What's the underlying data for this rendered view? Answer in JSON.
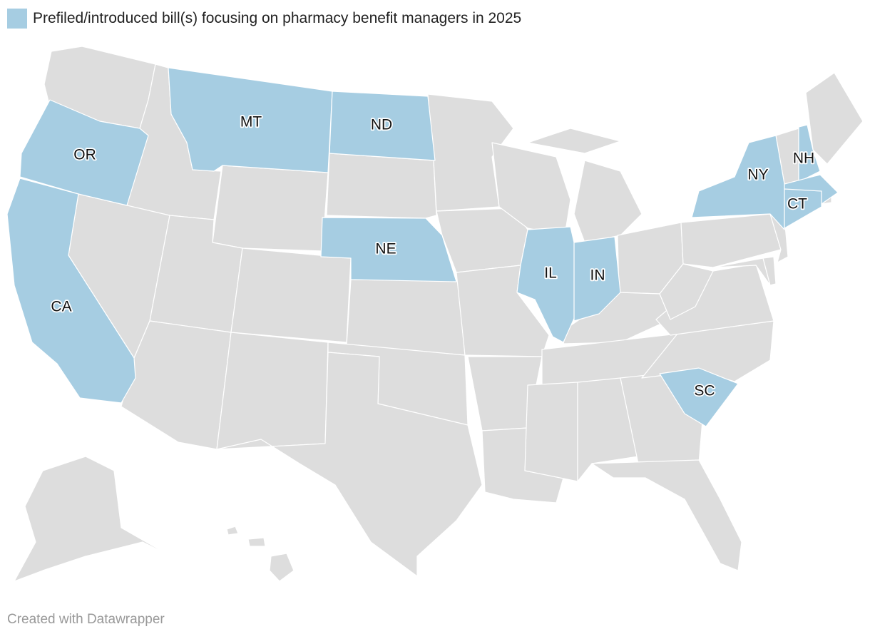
{
  "legend": {
    "label": "Prefiled/introduced bill(s) focusing on pharmacy benefit managers in 2025",
    "color": "#a6cde2"
  },
  "colors": {
    "highlight": "#a6cde2",
    "base": "#dddddd",
    "border": "#ffffff"
  },
  "map": {
    "highlighted_states": [
      {
        "code": "OR",
        "label": "OR"
      },
      {
        "code": "CA",
        "label": "CA"
      },
      {
        "code": "MT",
        "label": "MT"
      },
      {
        "code": "ND",
        "label": "ND"
      },
      {
        "code": "NE",
        "label": "NE"
      },
      {
        "code": "IL",
        "label": "IL"
      },
      {
        "code": "IN",
        "label": "IN"
      },
      {
        "code": "NY",
        "label": "NY"
      },
      {
        "code": "NH",
        "label": "NH"
      },
      {
        "code": "CT",
        "label": "CT"
      },
      {
        "code": "SC",
        "label": "SC"
      }
    ]
  },
  "footer": {
    "credit": "Created with Datawrapper"
  }
}
